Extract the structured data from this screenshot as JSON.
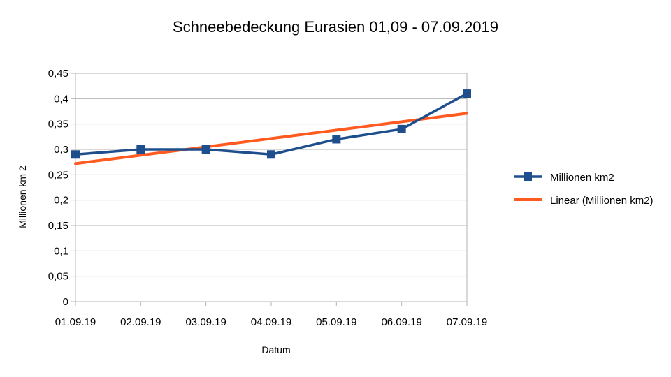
{
  "chart_data": {
    "type": "line",
    "title": "Schneebedeckung Eurasien 01,09 - 07.09.2019",
    "xlabel": "Datum",
    "ylabel": "Millionen km 2",
    "categories": [
      "01.09.19",
      "02.09.19",
      "03.09.19",
      "04.09.19",
      "05.09.19",
      "06.09.19",
      "07.09.19"
    ],
    "ylim": [
      0,
      0.45
    ],
    "yticks": [
      0,
      0.05,
      0.1,
      0.15,
      0.2,
      0.25,
      0.3,
      0.35,
      0.4,
      0.45
    ],
    "ytick_labels": [
      "0",
      "0,05",
      "0,1",
      "0,15",
      "0,2",
      "0,25",
      "0,3",
      "0,35",
      "0,4",
      "0,45"
    ],
    "grid": true,
    "legend_position": "right",
    "series": [
      {
        "name": "Millionen km2",
        "values": [
          0.29,
          0.3,
          0.3,
          0.29,
          0.32,
          0.34,
          0.41
        ],
        "color": "#1f4e8c",
        "marker": "square"
      },
      {
        "name": "Linear (Millionen km2)",
        "type": "trendline",
        "start": 0.272,
        "end": 0.371,
        "color": "#ff5a1f"
      }
    ]
  }
}
